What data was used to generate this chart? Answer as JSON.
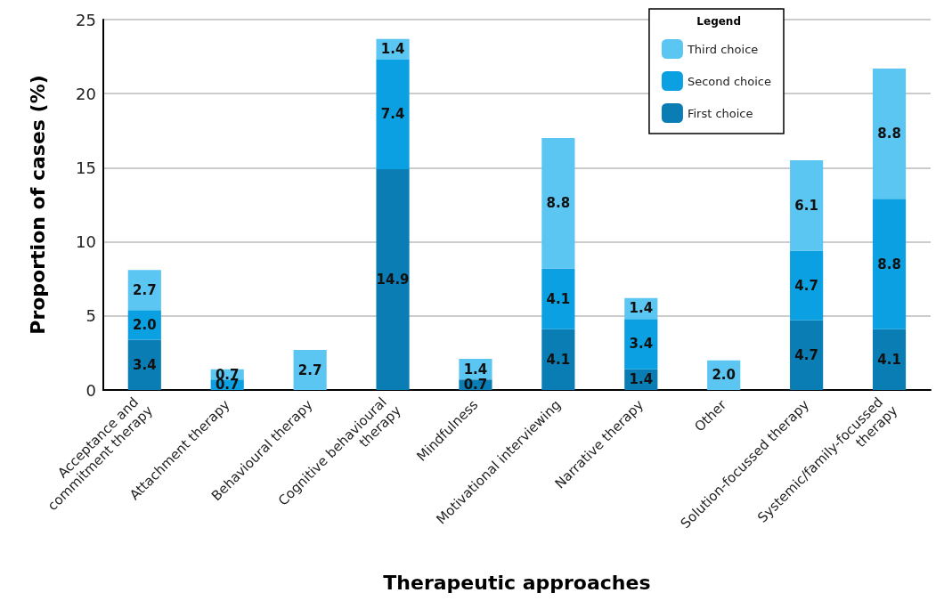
{
  "chart_data": {
    "type": "bar",
    "stacked": true,
    "xlabel": "Therapeutic approaches",
    "ylabel": "Proportion of cases (%)",
    "legend_title": "Legend",
    "categories": [
      "Acceptance and commitment therapy",
      "Attachment therapy",
      "Behavioural therapy",
      "Cognitive behavioural therapy",
      "Mindfulness",
      "Motivational interviewing",
      "Narrative therapy",
      "Other",
      "Solution-focussed therapy",
      "Systemic/family-focussed therapy"
    ],
    "series": [
      {
        "name": "First choice",
        "color": "#0a7db5",
        "values": [
          3.4,
          null,
          null,
          14.9,
          0.7,
          4.1,
          1.4,
          null,
          4.7,
          4.1
        ],
        "value_labels": [
          "3.4",
          null,
          null,
          "14.9",
          "0.7",
          "4.1",
          "1.4",
          null,
          "4.7",
          "4.1"
        ]
      },
      {
        "name": "Second choice",
        "color": "#0aa0e2",
        "values": [
          2.0,
          0.7,
          null,
          7.4,
          null,
          4.1,
          3.4,
          null,
          4.7,
          8.8
        ],
        "value_labels": [
          "2.0",
          "0.7",
          null,
          "7.4",
          null,
          "4.1",
          "3.4",
          null,
          "4.7",
          "8.8"
        ]
      },
      {
        "name": "Third choice",
        "color": "#5cc6f2",
        "values": [
          2.7,
          0.7,
          2.7,
          1.4,
          1.4,
          8.8,
          1.4,
          2.0,
          6.1,
          8.8
        ],
        "value_labels": [
          "2.7",
          "0.7",
          "2.7",
          "1.4",
          "1.4",
          "8.8",
          "1.4",
          "2.0",
          "6.1",
          "8.8"
        ]
      }
    ],
    "ylim": [
      0,
      25
    ],
    "yticks": [
      0,
      5,
      10,
      15,
      20,
      25
    ],
    "grid": "y",
    "legend": "top right"
  }
}
